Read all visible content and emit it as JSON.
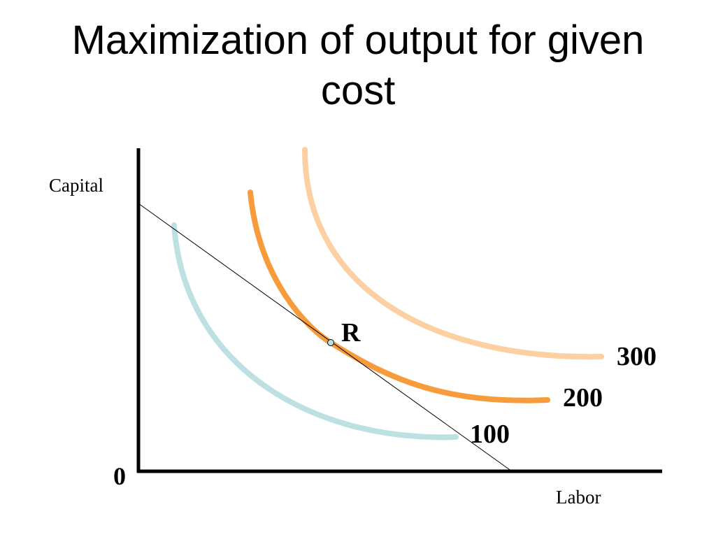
{
  "slide": {
    "title_line1": "Maximization of output for given",
    "title_line2": "cost"
  },
  "axes": {
    "y_label": "Capital",
    "x_label": "Labor",
    "origin_label": "0"
  },
  "isoquants": [
    {
      "label": "100",
      "color": "#bde0e2"
    },
    {
      "label": "200",
      "color": "#f79b3c"
    },
    {
      "label": "300",
      "color": "#fdd0a2"
    }
  ],
  "isocost": {
    "color": "#000000"
  },
  "tangency_point": {
    "label": "R",
    "color": "#bde0e2"
  }
}
